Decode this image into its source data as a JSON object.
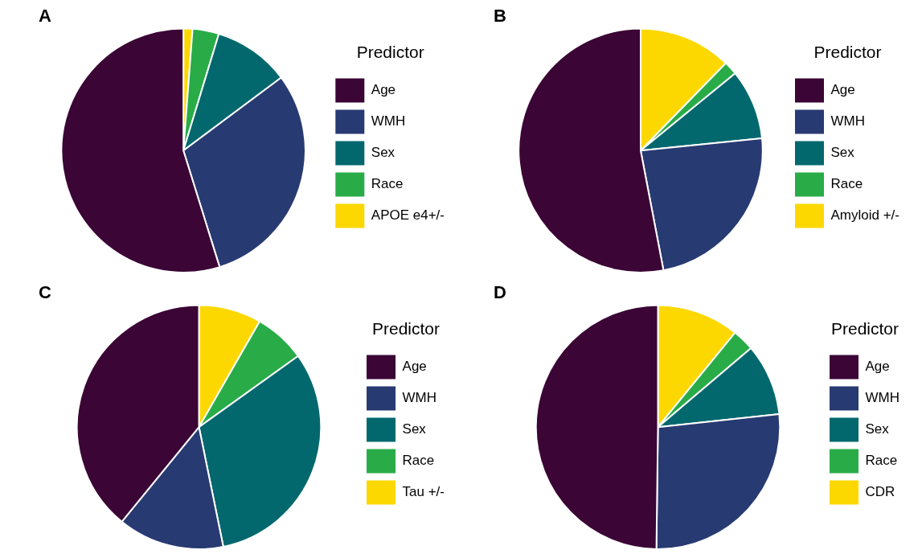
{
  "chart_data": [
    {
      "type": "pie",
      "title": "A",
      "legend_title": "Predictor",
      "legend": "right",
      "categories": [
        "Age",
        "WMH",
        "Sex",
        "Race",
        "APOE e4+/-"
      ],
      "values": [
        54.8,
        30.4,
        10.1,
        3.5,
        1.2
      ],
      "colors": [
        "#3b0536",
        "#283a72",
        "#02686e",
        "#29ac48",
        "#fdd800"
      ]
    },
    {
      "type": "pie",
      "title": "B",
      "legend_title": "Predictor",
      "legend": "right",
      "categories": [
        "Age",
        "WMH",
        "Sex",
        "Race",
        "Amyloid +/-"
      ],
      "values": [
        53.0,
        23.6,
        9.3,
        1.8,
        12.3
      ],
      "colors": [
        "#3b0536",
        "#283a72",
        "#02686e",
        "#29ac48",
        "#fdd800"
      ]
    },
    {
      "type": "pie",
      "title": "C",
      "legend_title": "Predictor",
      "legend": "right",
      "categories": [
        "Age",
        "WMH",
        "Sex",
        "Race",
        "Tau +/-"
      ],
      "values": [
        39.1,
        14.1,
        31.7,
        6.8,
        8.3
      ],
      "colors": [
        "#3b0536",
        "#283a72",
        "#02686e",
        "#29ac48",
        "#fdd800"
      ]
    },
    {
      "type": "pie",
      "title": "D",
      "legend_title": "Predictor",
      "legend": "right",
      "categories": [
        "Age",
        "WMH",
        "Sex",
        "Race",
        "CDR"
      ],
      "values": [
        49.8,
        26.9,
        9.5,
        2.9,
        10.9
      ],
      "colors": [
        "#3b0536",
        "#283a72",
        "#02686e",
        "#29ac48",
        "#fdd800"
      ]
    }
  ]
}
